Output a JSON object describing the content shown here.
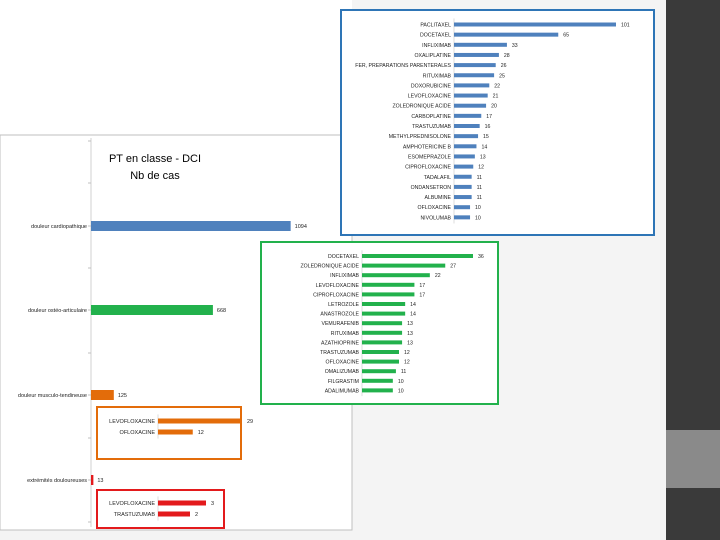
{
  "colors": {
    "blue": "#4f81bd",
    "green": "#22b14c",
    "orange": "#e36c0a",
    "red": "#e31a1c"
  },
  "chart_data": [
    {
      "type": "bar",
      "orientation": "horizontal",
      "title": "PT en classe - DCI",
      "subtitle": "Nb de cas",
      "categories": [
        "douleur cardiopathique",
        "douleur ostéo-articulaire",
        "douleur musculo-tendineuse",
        "extrémités douloureuses"
      ],
      "values": [
        1094,
        668,
        125,
        13
      ],
      "xlim": [
        0,
        1200
      ],
      "colors": [
        "#4f81bd",
        "#22b14c",
        "#e36c0a",
        "#e31a1c"
      ]
    },
    {
      "type": "bar",
      "orientation": "horizontal",
      "categories": [
        "PACLITAXEL",
        "DOCETAXEL",
        "INFLIXIMAB",
        "OXALIPLATINE",
        "FER, PREPARATIONS PARENTERALES",
        "RITUXIMAB",
        "DOXORUBICINE",
        "LEVOFLOXACINE",
        "ZOLEDRONIQUE ACIDE",
        "CARBOPLATINE",
        "TRASTUZUMAB",
        "METHYLPREDNISOLONE",
        "AMPHOTERICINE B",
        "ESOMEPRAZOLE",
        "CIPROFLOXACINE",
        "TADALAFIL",
        "ONDANSETRON",
        "ALBUMINE",
        "OFLOXACINE",
        "NIVOLUMAB"
      ],
      "values": [
        101,
        65,
        33,
        28,
        26,
        25,
        22,
        21,
        20,
        17,
        16,
        15,
        14,
        13,
        12,
        11,
        11,
        11,
        10,
        10
      ],
      "xlim": [
        0,
        101
      ],
      "color": "#4f81bd"
    },
    {
      "type": "bar",
      "orientation": "horizontal",
      "categories": [
        "DOCETAXEL",
        "ZOLEDRONIQUE ACIDE",
        "INFLIXIMAB",
        "LEVOFLOXACINE",
        "CIPROFLOXACINE",
        "LETROZOLE",
        "ANASTROZOLE",
        "VEMURAFENIB",
        "RITUXIMAB",
        "AZATHIOPRINE",
        "TRASTUZUMAB",
        "OFLOXACINE",
        "OMALIZUMAB",
        "FILGRASTIM",
        "ADALIMUMAB"
      ],
      "values": [
        36,
        27,
        22,
        17,
        17,
        14,
        14,
        13,
        13,
        13,
        12,
        12,
        11,
        10,
        10
      ],
      "xlim": [
        0,
        36
      ],
      "color": "#22b14c"
    },
    {
      "type": "bar",
      "orientation": "horizontal",
      "categories": [
        "LEVOFLOXACINE",
        "OFLOXACINE"
      ],
      "values": [
        29,
        12
      ],
      "xlim": [
        0,
        29
      ],
      "color": "#e36c0a"
    },
    {
      "type": "bar",
      "orientation": "horizontal",
      "categories": [
        "LEVOFLOXACINE",
        "TRASTUZUMAB"
      ],
      "values": [
        3,
        2
      ],
      "xlim": [
        0,
        3
      ],
      "color": "#e31a1c"
    }
  ]
}
